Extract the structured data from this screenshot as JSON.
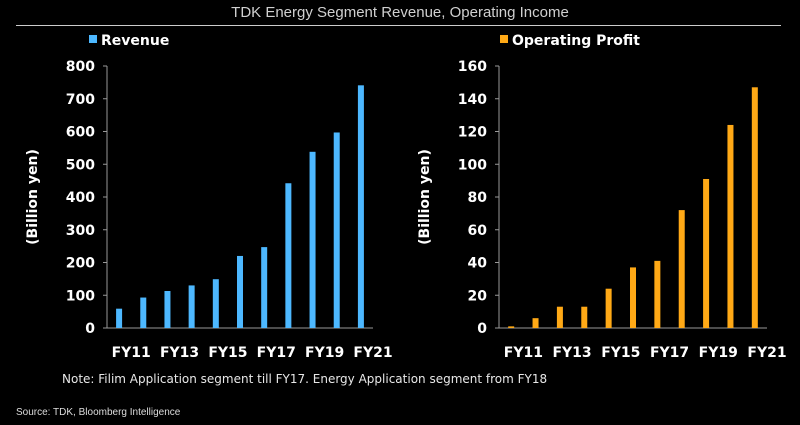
{
  "title": "TDK Energy Segment Revenue, Operating Income",
  "note": "Note: Filim Application segment till FY17. Energy Application segment from FY18",
  "source": "Source: TDK, Bloomberg Intelligence",
  "chart_data": [
    {
      "type": "bar",
      "legend": "Revenue",
      "legend_position": "top-left",
      "color": "#4db8ff",
      "ylabel": "(Billion yen)",
      "ylim": [
        0,
        800
      ],
      "yticks": [
        0,
        100,
        200,
        300,
        400,
        500,
        600,
        700,
        800
      ],
      "categories": [
        "FY11",
        "FY12",
        "FY13",
        "FY14",
        "FY15",
        "FY16",
        "FY17",
        "FY18",
        "FY19",
        "FY20",
        "FY21"
      ],
      "xtick_labels": [
        "FY11",
        "FY13",
        "FY15",
        "FY17",
        "FY19",
        "FY21"
      ],
      "values": [
        59,
        93,
        113,
        130,
        149,
        220,
        247,
        442,
        538,
        597,
        741
      ],
      "grid": false
    },
    {
      "type": "bar",
      "legend": "Operating Profit",
      "legend_position": "top-left",
      "color": "#ffa916",
      "ylabel": "(Billion yen)",
      "ylim": [
        0,
        160
      ],
      "yticks": [
        0,
        20,
        40,
        60,
        80,
        100,
        120,
        140,
        160
      ],
      "categories": [
        "FY11",
        "FY12",
        "FY13",
        "FY14",
        "FY15",
        "FY16",
        "FY17",
        "FY18",
        "FY19",
        "FY20",
        "FY21"
      ],
      "xtick_labels": [
        "FY11",
        "FY13",
        "FY15",
        "FY17",
        "FY19",
        "FY21"
      ],
      "values": [
        1,
        6,
        13,
        13,
        24,
        37,
        41,
        72,
        91,
        124,
        147
      ],
      "grid": false
    }
  ]
}
